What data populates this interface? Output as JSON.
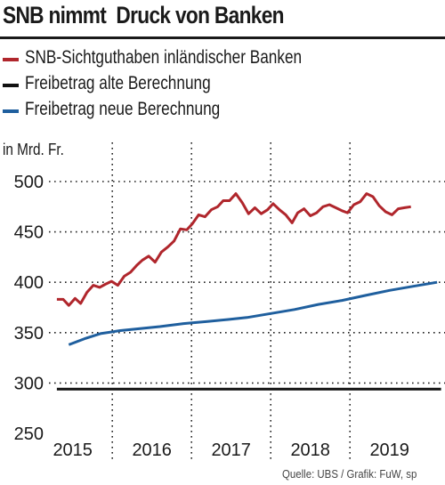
{
  "colors": {
    "snb": "#b0262c",
    "alt": "#111111",
    "neu": "#1f5f9e",
    "grid": "#222222"
  },
  "chart_data": {
    "type": "line",
    "title": "SNB nimmt  Druck von Banken",
    "ylabel": "in Mrd. Fr.",
    "ylim": [
      250,
      500
    ],
    "yticks": [
      250,
      300,
      350,
      400,
      450,
      500
    ],
    "ytick_labels": [
      "250",
      "300",
      "350",
      "400",
      "450",
      "500"
    ],
    "xlim": [
      2014.7,
      2019.7
    ],
    "xtick_positions": [
      2015.0,
      2016.0,
      2017.0,
      2018.0,
      2019.0
    ],
    "xtick_labels": [
      "2015",
      "2016",
      "2017",
      "2018",
      "2019"
    ],
    "year_separators": [
      2015.5,
      2016.5,
      2017.5,
      2018.5
    ],
    "grid": "dotted",
    "legend_placement": "top",
    "series": [
      {
        "name": "SNB-Sichtguthaben inländischer Banken",
        "color_key": "snb",
        "x": [
          2014.8,
          2014.88,
          2014.95,
          2015.03,
          2015.1,
          2015.18,
          2015.26,
          2015.34,
          2015.41,
          2015.49,
          2015.57,
          2015.65,
          2015.73,
          2015.81,
          2015.88,
          2015.96,
          2016.04,
          2016.12,
          2016.2,
          2016.28,
          2016.36,
          2016.44,
          2016.51,
          2016.59,
          2016.67,
          2016.75,
          2016.83,
          2016.9,
          2016.98,
          2017.06,
          2017.14,
          2017.22,
          2017.3,
          2017.38,
          2017.46,
          2017.53,
          2017.61,
          2017.69,
          2017.77,
          2017.84,
          2017.92,
          2018.0,
          2018.08,
          2018.16,
          2018.24,
          2018.32,
          2018.4,
          2018.47,
          2018.55,
          2018.63,
          2018.71,
          2018.79,
          2018.87,
          2018.95,
          2019.03,
          2019.11,
          2019.19,
          2019.27
        ],
        "values": [
          383,
          383,
          377,
          384,
          379,
          390,
          397,
          395,
          398,
          401,
          397,
          406,
          410,
          417,
          422,
          426,
          420,
          430,
          435,
          441,
          453,
          452,
          458,
          467,
          465,
          472,
          475,
          481,
          481,
          488,
          479,
          468,
          474,
          468,
          472,
          478,
          472,
          467,
          459,
          469,
          473,
          466,
          469,
          475,
          477,
          474,
          471,
          469,
          477,
          480,
          488,
          485,
          476,
          470,
          467,
          473,
          474,
          475
        ]
      },
      {
        "name": "Freibetrag alte Berechnung",
        "color_key": "alt",
        "x": [
          2014.8,
          2019.65
        ],
        "values": [
          294,
          294
        ]
      },
      {
        "name": "Freibetrag neue Berechnung",
        "color_key": "neu",
        "x": [
          2014.95,
          2015.15,
          2015.35,
          2015.6,
          2015.85,
          2016.1,
          2016.4,
          2016.7,
          2016.95,
          2017.2,
          2017.5,
          2017.8,
          2018.1,
          2018.4,
          2018.7,
          2019.0,
          2019.3,
          2019.6
        ],
        "values": [
          338,
          344,
          349,
          352,
          354,
          356,
          359,
          361,
          363,
          365,
          369,
          373,
          378,
          382,
          387,
          392,
          396,
          400
        ]
      }
    ]
  },
  "source_text": "Quelle: UBS / Grafik: FuW, sp"
}
